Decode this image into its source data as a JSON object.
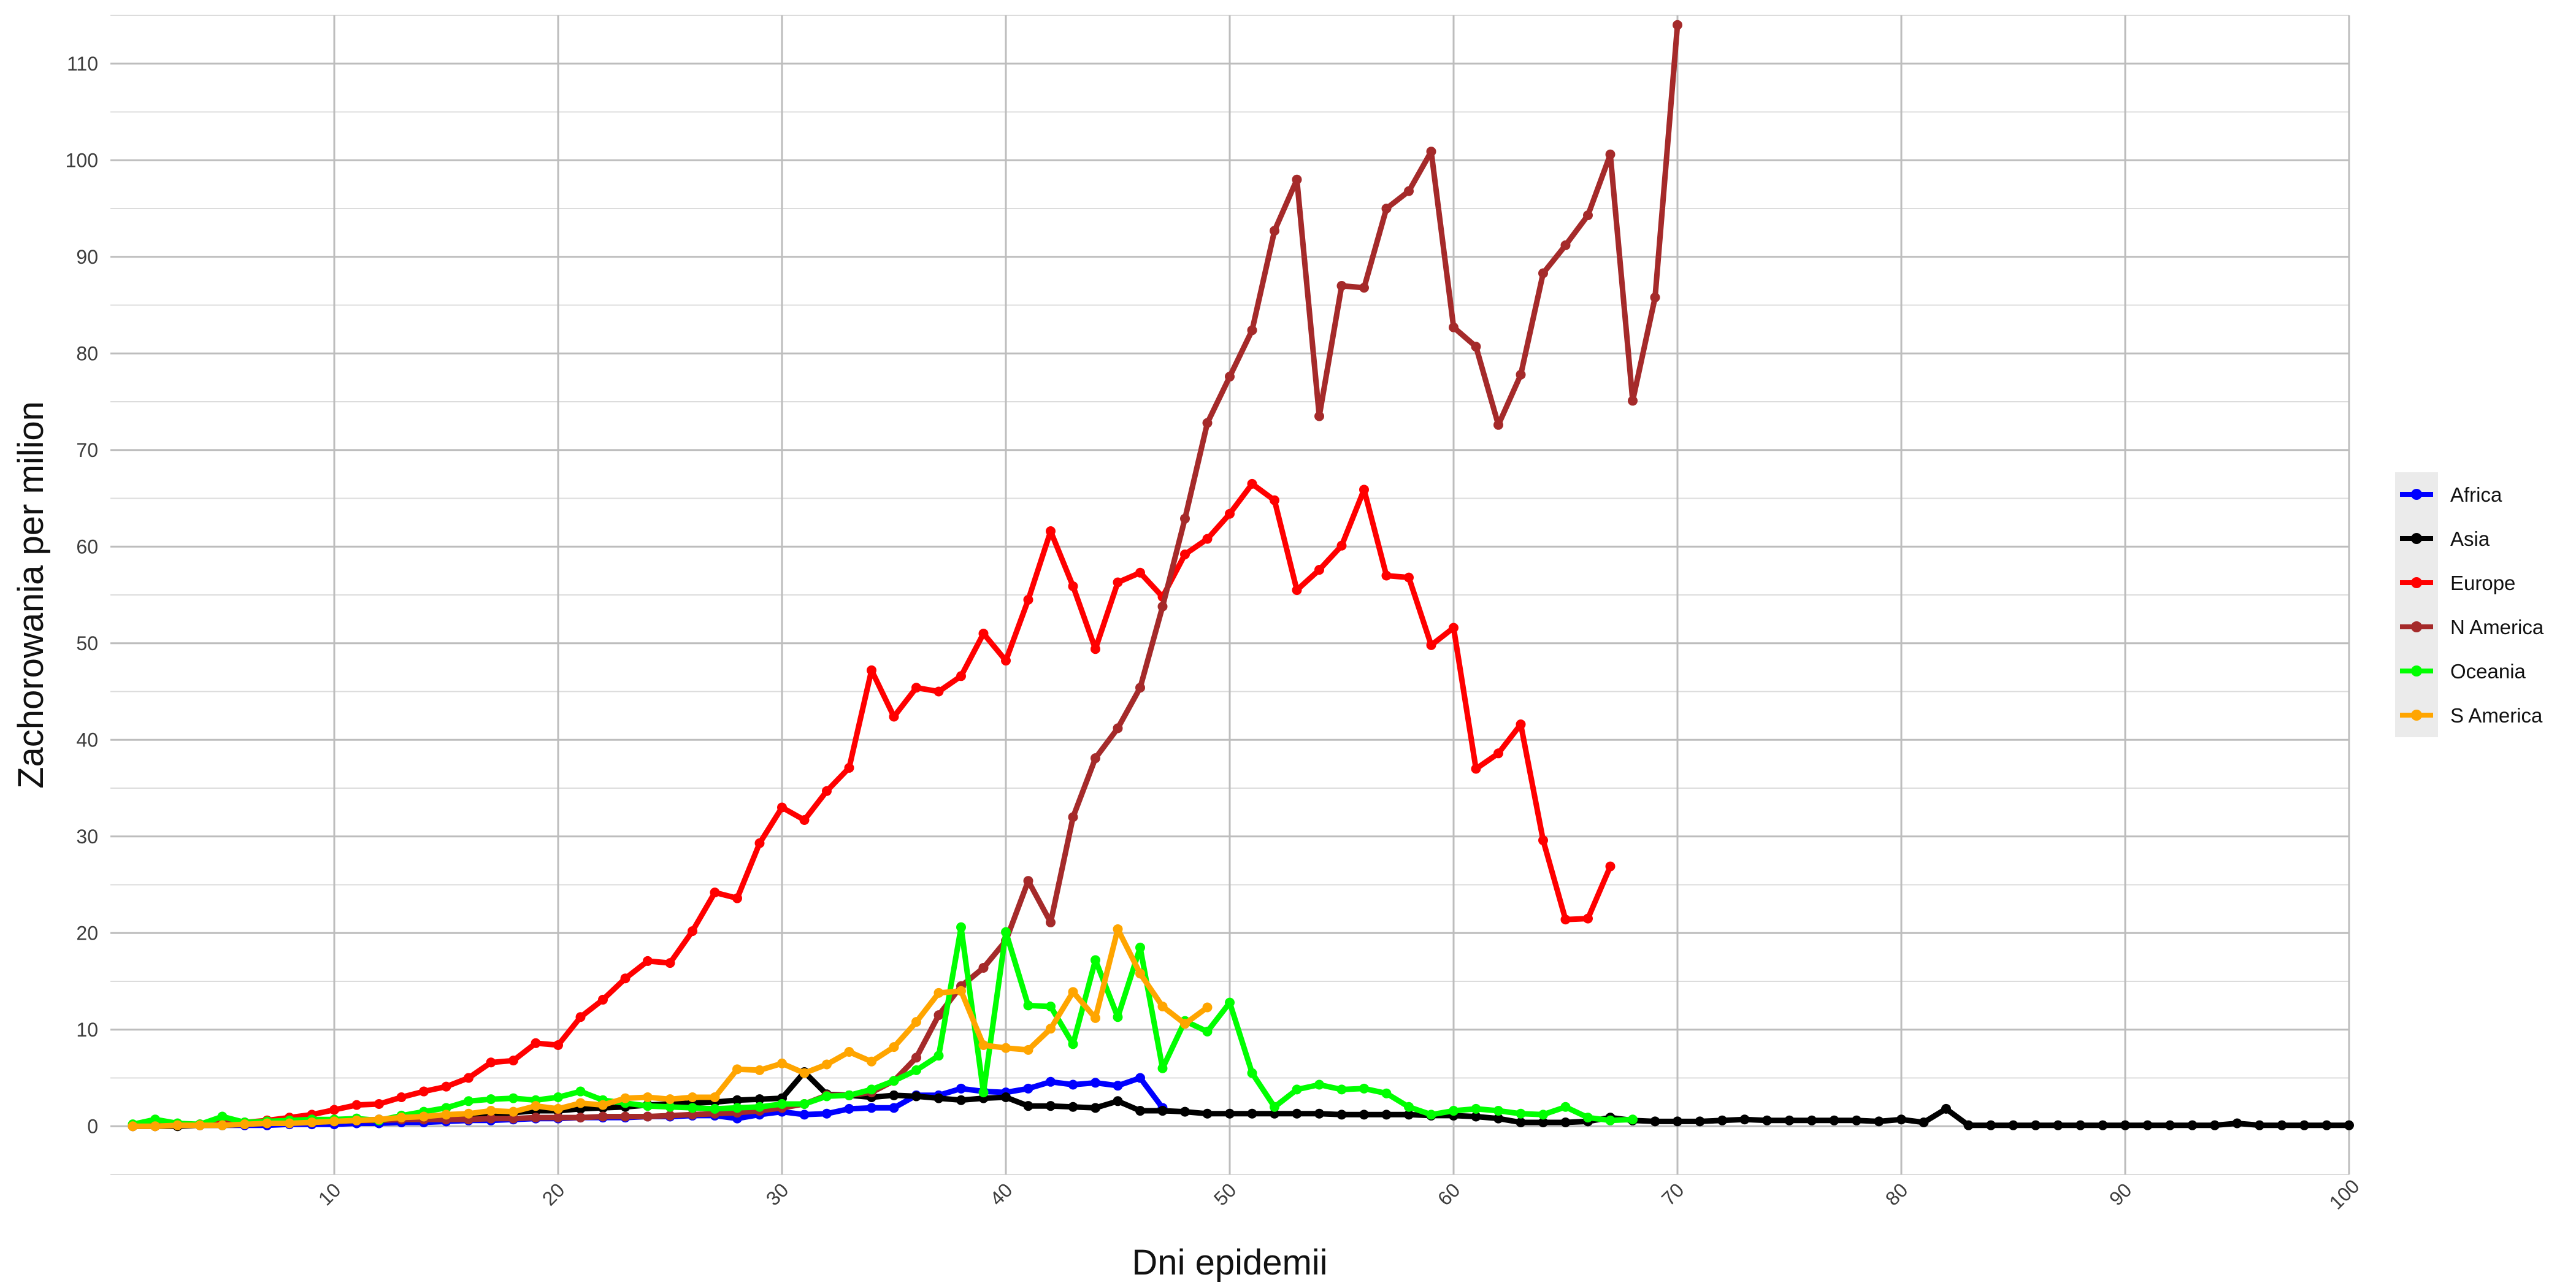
{
  "chart_data": {
    "type": "line",
    "title": "",
    "xlabel": "Dni epidemii",
    "ylabel": "Zachorowania per milion",
    "xlim": [
      0,
      100
    ],
    "ylim": [
      -5,
      115
    ],
    "x_ticks": [
      10,
      20,
      30,
      40,
      50,
      60,
      70,
      80,
      90,
      100
    ],
    "y_ticks": [
      0,
      10,
      20,
      30,
      40,
      50,
      60,
      70,
      80,
      90,
      100,
      110
    ],
    "grid": true,
    "legend_position": "right",
    "series": [
      {
        "name": "Africa",
        "color": "#0000ff",
        "x_start": 1,
        "values": [
          0.1,
          0.1,
          0.1,
          0.1,
          0.1,
          0.1,
          0.1,
          0.2,
          0.2,
          0.2,
          0.3,
          0.3,
          0.4,
          0.4,
          0.5,
          0.6,
          0.6,
          0.7,
          0.8,
          0.8,
          0.9,
          0.9,
          0.9,
          1.0,
          1.0,
          1.1,
          1.1,
          0.8,
          1.2,
          1.5,
          1.2,
          1.3,
          1.8,
          1.9,
          1.9,
          3.2,
          3.2,
          3.9,
          3.6,
          3.5,
          3.9,
          4.6,
          4.3,
          4.5,
          4.2,
          5.0,
          1.9
        ]
      },
      {
        "name": "Asia",
        "color": "#000000",
        "x_start": 1,
        "values": [
          0.0,
          0.0,
          0.0,
          0.1,
          0.1,
          0.2,
          0.3,
          0.4,
          0.4,
          0.5,
          0.6,
          0.7,
          0.8,
          1.0,
          1.0,
          1.1,
          1.2,
          1.4,
          1.6,
          1.6,
          1.8,
          1.9,
          2.0,
          2.2,
          2.3,
          2.4,
          2.5,
          2.7,
          2.8,
          2.9,
          5.6,
          3.3,
          3.2,
          3.0,
          3.2,
          3.1,
          2.9,
          2.7,
          2.9,
          3.0,
          2.1,
          2.1,
          2.0,
          1.9,
          2.6,
          1.6,
          1.6,
          1.5,
          1.3,
          1.3,
          1.3,
          1.3,
          1.3,
          1.3,
          1.2,
          1.2,
          1.2,
          1.2,
          1.1,
          1.1,
          1.0,
          0.8,
          0.4,
          0.4,
          0.4,
          0.5,
          0.9,
          0.6,
          0.5,
          0.5,
          0.5,
          0.6,
          0.7,
          0.6,
          0.6,
          0.6,
          0.6,
          0.6,
          0.5,
          0.7,
          0.4,
          1.8,
          0.1,
          0.1,
          0.1,
          0.1,
          0.1,
          0.1,
          0.1,
          0.1,
          0.1,
          0.1,
          0.1,
          0.1,
          0.3,
          0.1,
          0.1,
          0.1,
          0.1,
          0.1
        ]
      },
      {
        "name": "Europe",
        "color": "#ff0000",
        "x_start": 1,
        "values": [
          0.1,
          0.1,
          0.2,
          0.2,
          0.3,
          0.4,
          0.6,
          0.9,
          1.2,
          1.7,
          2.2,
          2.3,
          3.0,
          3.6,
          4.1,
          5.0,
          6.6,
          6.8,
          8.6,
          8.4,
          11.3,
          13.1,
          15.3,
          17.1,
          16.9,
          20.2,
          24.2,
          23.6,
          29.3,
          33.0,
          31.7,
          34.7,
          37.1,
          47.2,
          42.4,
          45.4,
          45.0,
          46.6,
          51.0,
          48.2,
          54.5,
          61.6,
          55.9,
          49.4,
          56.3,
          57.3,
          54.8,
          59.2,
          60.8,
          63.4,
          66.5,
          64.8,
          55.5,
          57.6,
          60.1,
          65.9,
          57.0,
          56.8,
          49.8,
          51.6,
          37.0,
          38.6,
          41.6,
          29.6,
          21.4,
          21.5,
          26.9
        ]
      },
      {
        "name": "N America",
        "color": "#a52a2a",
        "x_start": 1,
        "values": [
          0.0,
          0.0,
          0.1,
          0.1,
          0.2,
          0.3,
          0.4,
          0.5,
          0.5,
          0.6,
          0.6,
          0.6,
          0.7,
          0.7,
          0.7,
          0.7,
          0.8,
          0.8,
          0.9,
          0.9,
          0.9,
          1.0,
          1.0,
          1.0,
          1.1,
          1.2,
          1.3,
          1.4,
          1.6,
          1.9,
          2.3,
          3.2,
          3.2,
          3.5,
          4.7,
          7.1,
          11.5,
          14.5,
          16.4,
          19.2,
          25.4,
          21.1,
          32.0,
          38.1,
          41.2,
          45.4,
          53.8,
          62.9,
          72.8,
          77.6,
          82.4,
          92.7,
          98.0,
          73.5,
          87.0,
          86.8,
          95.0,
          96.8,
          100.9,
          82.7,
          80.7,
          72.6,
          77.8,
          88.3,
          91.2,
          94.3,
          100.6,
          75.1,
          85.8,
          114.0
        ]
      },
      {
        "name": "Oceania",
        "color": "#00ff00",
        "x_start": 1,
        "values": [
          0.2,
          0.7,
          0.3,
          0.2,
          1.0,
          0.4,
          0.5,
          0.6,
          0.7,
          0.7,
          0.8,
          0.6,
          1.1,
          1.5,
          1.9,
          2.6,
          2.8,
          2.9,
          2.7,
          3.0,
          3.6,
          2.7,
          2.4,
          2.1,
          2.0,
          1.9,
          1.8,
          1.9,
          2.0,
          2.3,
          2.3,
          3.1,
          3.2,
          3.8,
          4.7,
          5.8,
          7.3,
          20.6,
          3.5,
          20.1,
          12.5,
          12.4,
          8.5,
          17.2,
          11.3,
          18.5,
          6.0,
          10.9,
          9.8,
          12.8,
          5.5,
          2.0,
          3.8,
          4.3,
          3.8,
          3.9,
          3.4,
          2.0,
          1.2,
          1.6,
          1.8,
          1.6,
          1.3,
          1.2,
          2.0,
          0.9,
          0.6,
          0.7
        ]
      },
      {
        "name": "S America",
        "color": "#ffa500",
        "x_start": 1,
        "values": [
          0.0,
          0.0,
          0.1,
          0.1,
          0.1,
          0.2,
          0.3,
          0.3,
          0.4,
          0.5,
          0.6,
          0.7,
          0.9,
          1.0,
          1.2,
          1.3,
          1.6,
          1.5,
          2.1,
          1.8,
          2.4,
          2.2,
          2.9,
          3.0,
          2.8,
          3.0,
          3.0,
          5.9,
          5.8,
          6.5,
          5.5,
          6.4,
          7.7,
          6.7,
          8.2,
          10.8,
          13.8,
          14.0,
          8.4,
          8.1,
          7.9,
          10.1,
          13.9,
          11.2,
          20.4,
          15.8,
          12.4,
          10.6,
          12.3
        ]
      }
    ]
  }
}
